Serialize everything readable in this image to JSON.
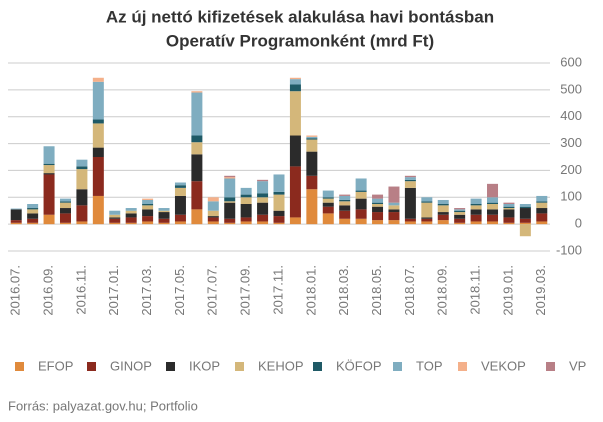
{
  "chart_data": {
    "type": "stacked_bar",
    "title": "Az új nettó kifizetések alakulása havi bontásban",
    "subtitle": "Operatív Programonként (mrd Ft)",
    "source": "Forrás: palyazat.gov.hu; Portfolio",
    "categories": [
      "2016.07.",
      null,
      "2016.09.",
      null,
      "2016.11.",
      null,
      "2017.01.",
      null,
      "2017.03.",
      null,
      "2017.05.",
      null,
      "2017.07.",
      null,
      "2017.09.",
      null,
      "2017.11.",
      null,
      "2018.01.",
      null,
      "2018.03.",
      null,
      "2018.05.",
      null,
      "2018.07.",
      null,
      "2018.09.",
      null,
      "2018.11.",
      null,
      "2019.01.",
      null,
      "2019.03."
    ],
    "series": [
      {
        "name": "EFOP",
        "color": "#e08a3c",
        "values": [
          5,
          5,
          35,
          5,
          10,
          105,
          5,
          5,
          10,
          5,
          10,
          55,
          10,
          5,
          10,
          10,
          5,
          25,
          130,
          40,
          20,
          20,
          15,
          15,
          10,
          10,
          15,
          5,
          10,
          10,
          5,
          5,
          10
        ]
      },
      {
        "name": "GINOP",
        "color": "#8b2a1e",
        "values": [
          10,
          15,
          150,
          35,
          60,
          145,
          15,
          20,
          20,
          15,
          25,
          105,
          15,
          15,
          15,
          25,
          25,
          190,
          50,
          25,
          30,
          35,
          30,
          30,
          10,
          10,
          20,
          15,
          25,
          25,
          20,
          15,
          30
        ]
      },
      {
        "name": "IKOP",
        "color": "#2b2b2b",
        "values": [
          40,
          20,
          5,
          20,
          60,
          35,
          5,
          15,
          25,
          25,
          70,
          100,
          5,
          60,
          50,
          45,
          20,
          115,
          90,
          15,
          20,
          40,
          20,
          10,
          115,
          5,
          10,
          15,
          20,
          20,
          30,
          40,
          20
        ]
      },
      {
        "name": "KEHOP",
        "color": "#d4b77a",
        "values": [
          0,
          15,
          30,
          20,
          75,
          90,
          10,
          10,
          15,
          5,
          30,
          45,
          20,
          5,
          25,
          20,
          60,
          165,
          45,
          15,
          15,
          25,
          10,
          15,
          25,
          55,
          25,
          10,
          15,
          20,
          5,
          -45,
          20
        ]
      },
      {
        "name": "KÖFOP",
        "color": "#1f5a66",
        "values": [
          0,
          5,
          5,
          5,
          10,
          15,
          0,
          0,
          5,
          0,
          10,
          25,
          0,
          15,
          10,
          15,
          10,
          25,
          5,
          5,
          5,
          5,
          5,
          0,
          5,
          5,
          5,
          5,
          5,
          5,
          5,
          5,
          5
        ]
      },
      {
        "name": "TOP",
        "color": "#7fadc0",
        "values": [
          3,
          15,
          65,
          10,
          25,
          140,
          15,
          10,
          15,
          10,
          10,
          160,
          35,
          70,
          25,
          45,
          65,
          20,
          5,
          25,
          15,
          45,
          15,
          10,
          10,
          15,
          15,
          5,
          20,
          20,
          10,
          10,
          20
        ]
      },
      {
        "name": "VEKOP",
        "color": "#f4b08a",
        "values": [
          0,
          0,
          0,
          0,
          0,
          15,
          0,
          0,
          5,
          0,
          0,
          5,
          15,
          5,
          0,
          0,
          0,
          5,
          5,
          0,
          0,
          0,
          0,
          0,
          0,
          0,
          0,
          0,
          0,
          0,
          0,
          0,
          0
        ]
      },
      {
        "name": "VP",
        "color": "#b87f86",
        "values": [
          0,
          0,
          0,
          0,
          0,
          0,
          0,
          0,
          0,
          0,
          0,
          0,
          0,
          5,
          0,
          5,
          0,
          0,
          0,
          0,
          5,
          0,
          15,
          60,
          5,
          0,
          0,
          5,
          0,
          50,
          5,
          0,
          0
        ]
      }
    ],
    "ylim": [
      -100,
      600
    ],
    "yticks": [
      -100,
      0,
      100,
      200,
      300,
      400,
      500,
      600
    ],
    "grid": true
  }
}
